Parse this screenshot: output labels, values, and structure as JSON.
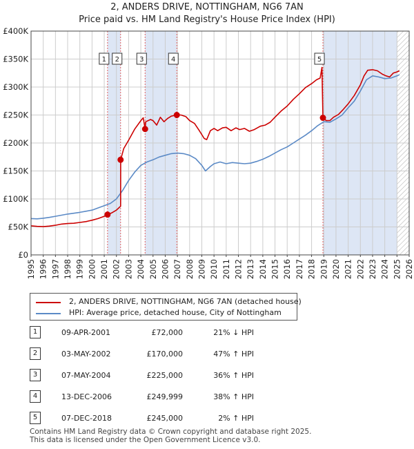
{
  "header": {
    "title_line1": "2, ANDERS DRIVE, NOTTINGHAM, NG6 7AN",
    "title_line2": "Price paid vs. HM Land Registry's House Price Index (HPI)"
  },
  "legend": {
    "red_label": "2, ANDERS DRIVE, NOTTINGHAM, NG6 7AN (detached house)",
    "blue_label": "HPI: Average price, detached house, City of Nottingham"
  },
  "transactions": [
    {
      "num": "1",
      "date": "09-APR-2001",
      "price": "£72,000",
      "hpi": "21% ↓ HPI"
    },
    {
      "num": "2",
      "date": "03-MAY-2002",
      "price": "£170,000",
      "hpi": "47% ↑ HPI"
    },
    {
      "num": "3",
      "date": "07-MAY-2004",
      "price": "£225,000",
      "hpi": "36% ↑ HPI"
    },
    {
      "num": "4",
      "date": "13-DEC-2006",
      "price": "£249,999",
      "hpi": "38% ↑ HPI"
    },
    {
      "num": "5",
      "date": "07-DEC-2018",
      "price": "£245,000",
      "hpi": "2% ↑ HPI"
    }
  ],
  "footer": {
    "line1": "Contains HM Land Registry data © Crown copyright and database right 2025.",
    "line2": "This data is licensed under the Open Government Licence v3.0."
  },
  "colors": {
    "red": "#cc0000",
    "blue": "#5b8ac6",
    "shade": "#dde6f5",
    "grid": "#cccccc",
    "vline": "#e06060"
  },
  "chart_data": {
    "type": "line",
    "title": "2, ANDERS DRIVE, NOTTINGHAM, NG6 7AN",
    "subtitle": "Price paid vs. HM Land Registry's House Price Index (HPI)",
    "xlabel": "",
    "ylabel": "",
    "xlim": [
      1995,
      2026
    ],
    "ylim": [
      0,
      400000
    ],
    "x_ticks": [
      1995,
      1996,
      1997,
      1998,
      1999,
      2000,
      2001,
      2002,
      2003,
      2004,
      2005,
      2006,
      2007,
      2008,
      2009,
      2010,
      2011,
      2012,
      2013,
      2014,
      2015,
      2016,
      2017,
      2018,
      2019,
      2020,
      2021,
      2022,
      2023,
      2024,
      2025,
      2026
    ],
    "y_ticks": [
      0,
      50000,
      100000,
      150000,
      200000,
      250000,
      300000,
      350000,
      400000
    ],
    "y_tick_labels": [
      "£0",
      "£50K",
      "£100K",
      "£150K",
      "£200K",
      "£250K",
      "£300K",
      "£350K",
      "£400K"
    ],
    "grid": true,
    "shaded_periods": [
      [
        2001.27,
        2002.34
      ],
      [
        2004.35,
        2006.95
      ],
      [
        2018.93,
        2025.0
      ]
    ],
    "hatched_after": 2025.0,
    "sales": [
      {
        "label": "1",
        "x": 2001.27,
        "y": 72000
      },
      {
        "label": "2",
        "x": 2002.34,
        "y": 170000
      },
      {
        "label": "3",
        "x": 2004.35,
        "y": 225000
      },
      {
        "label": "4",
        "x": 2006.95,
        "y": 249999
      },
      {
        "label": "5",
        "x": 2018.93,
        "y": 245000
      }
    ],
    "series": [
      {
        "name": "2, ANDERS DRIVE, NOTTINGHAM, NG6 7AN (detached house)",
        "color": "red",
        "points": [
          [
            1995.0,
            52000
          ],
          [
            1995.5,
            51000
          ],
          [
            1996.0,
            50500
          ],
          [
            1996.5,
            51500
          ],
          [
            1997.0,
            53000
          ],
          [
            1997.5,
            55000
          ],
          [
            1998.0,
            56000
          ],
          [
            1998.5,
            56500
          ],
          [
            1999.0,
            58000
          ],
          [
            1999.5,
            59500
          ],
          [
            2000.0,
            62000
          ],
          [
            2000.5,
            65000
          ],
          [
            2001.0,
            69000
          ],
          [
            2001.27,
            72000
          ],
          [
            2001.6,
            75000
          ],
          [
            2002.0,
            80000
          ],
          [
            2002.34,
            87000
          ],
          [
            2002.35,
            170000
          ],
          [
            2002.6,
            190000
          ],
          [
            2003.0,
            205000
          ],
          [
            2003.5,
            225000
          ],
          [
            2004.0,
            240000
          ],
          [
            2004.2,
            245000
          ],
          [
            2004.35,
            225000
          ],
          [
            2004.4,
            238000
          ],
          [
            2004.8,
            242000
          ],
          [
            2005.0,
            240000
          ],
          [
            2005.3,
            232000
          ],
          [
            2005.6,
            246000
          ],
          [
            2005.9,
            238000
          ],
          [
            2006.2,
            244000
          ],
          [
            2006.5,
            248000
          ],
          [
            2006.95,
            249999
          ],
          [
            2007.3,
            250000
          ],
          [
            2007.7,
            247000
          ],
          [
            2008.0,
            240000
          ],
          [
            2008.4,
            235000
          ],
          [
            2008.8,
            222000
          ],
          [
            2009.2,
            208000
          ],
          [
            2009.4,
            206000
          ],
          [
            2009.7,
            222000
          ],
          [
            2010.0,
            226000
          ],
          [
            2010.3,
            222000
          ],
          [
            2010.7,
            227000
          ],
          [
            2011.0,
            228000
          ],
          [
            2011.4,
            222000
          ],
          [
            2011.8,
            227000
          ],
          [
            2012.1,
            224000
          ],
          [
            2012.5,
            226000
          ],
          [
            2012.9,
            221000
          ],
          [
            2013.3,
            224000
          ],
          [
            2013.8,
            230000
          ],
          [
            2014.2,
            232000
          ],
          [
            2014.6,
            237000
          ],
          [
            2015.0,
            246000
          ],
          [
            2015.5,
            257000
          ],
          [
            2016.0,
            266000
          ],
          [
            2016.5,
            278000
          ],
          [
            2017.0,
            288000
          ],
          [
            2017.5,
            299000
          ],
          [
            2018.0,
            306000
          ],
          [
            2018.4,
            313000
          ],
          [
            2018.7,
            316000
          ],
          [
            2018.85,
            335000
          ],
          [
            2018.93,
            245000
          ],
          [
            2019.2,
            240000
          ],
          [
            2019.5,
            240000
          ],
          [
            2019.8,
            246000
          ],
          [
            2020.2,
            251000
          ],
          [
            2020.6,
            260000
          ],
          [
            2021.0,
            270000
          ],
          [
            2021.5,
            285000
          ],
          [
            2022.0,
            304000
          ],
          [
            2022.3,
            320000
          ],
          [
            2022.6,
            330000
          ],
          [
            2023.0,
            331000
          ],
          [
            2023.4,
            329000
          ],
          [
            2023.8,
            323000
          ],
          [
            2024.1,
            320000
          ],
          [
            2024.4,
            318000
          ],
          [
            2024.7,
            325000
          ],
          [
            2025.0,
            327000
          ],
          [
            2025.2,
            329000
          ]
        ]
      },
      {
        "name": "HPI: Average price, detached house, City of Nottingham",
        "color": "blue",
        "points": [
          [
            1995.0,
            65000
          ],
          [
            1995.5,
            64500
          ],
          [
            1996.0,
            65500
          ],
          [
            1996.5,
            67000
          ],
          [
            1997.0,
            69000
          ],
          [
            1997.5,
            71000
          ],
          [
            1998.0,
            73000
          ],
          [
            1998.5,
            74500
          ],
          [
            1999.0,
            76000
          ],
          [
            1999.5,
            78000
          ],
          [
            2000.0,
            80000
          ],
          [
            2000.5,
            84000
          ],
          [
            2001.0,
            88000
          ],
          [
            2001.5,
            92000
          ],
          [
            2002.0,
            100000
          ],
          [
            2002.5,
            115000
          ],
          [
            2003.0,
            133000
          ],
          [
            2003.5,
            148000
          ],
          [
            2004.0,
            160000
          ],
          [
            2004.5,
            166000
          ],
          [
            2005.0,
            170000
          ],
          [
            2005.5,
            175000
          ],
          [
            2006.0,
            178000
          ],
          [
            2006.5,
            181000
          ],
          [
            2007.0,
            182000
          ],
          [
            2007.5,
            181000
          ],
          [
            2008.0,
            178000
          ],
          [
            2008.5,
            172000
          ],
          [
            2009.0,
            160000
          ],
          [
            2009.3,
            150000
          ],
          [
            2009.7,
            158000
          ],
          [
            2010.0,
            163000
          ],
          [
            2010.5,
            166000
          ],
          [
            2011.0,
            163000
          ],
          [
            2011.5,
            165000
          ],
          [
            2012.0,
            164000
          ],
          [
            2012.5,
            163000
          ],
          [
            2013.0,
            164000
          ],
          [
            2013.5,
            167000
          ],
          [
            2014.0,
            171000
          ],
          [
            2014.5,
            176000
          ],
          [
            2015.0,
            182000
          ],
          [
            2015.5,
            188000
          ],
          [
            2016.0,
            193000
          ],
          [
            2016.5,
            200000
          ],
          [
            2017.0,
            207000
          ],
          [
            2017.5,
            214000
          ],
          [
            2018.0,
            222000
          ],
          [
            2018.5,
            231000
          ],
          [
            2019.0,
            238000
          ],
          [
            2019.5,
            237000
          ],
          [
            2020.0,
            243000
          ],
          [
            2020.5,
            250000
          ],
          [
            2021.0,
            263000
          ],
          [
            2021.5,
            275000
          ],
          [
            2022.0,
            293000
          ],
          [
            2022.5,
            313000
          ],
          [
            2023.0,
            320000
          ],
          [
            2023.5,
            318000
          ],
          [
            2024.0,
            315000
          ],
          [
            2024.5,
            316000
          ],
          [
            2025.0,
            320000
          ],
          [
            2025.2,
            322000
          ]
        ]
      }
    ]
  }
}
